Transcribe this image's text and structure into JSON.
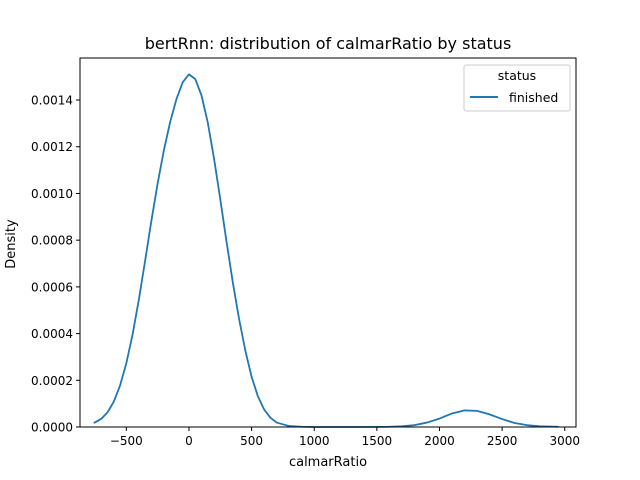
{
  "chart_data": {
    "type": "line",
    "title": "bertRnn: distribution of calmarRatio by status",
    "xlabel": "calmarRatio",
    "ylabel": "Density",
    "xlim": [
      -870,
      3090
    ],
    "ylim": [
      0,
      0.00158
    ],
    "x_ticks": [
      -500,
      0,
      500,
      1000,
      1500,
      2000,
      2500,
      3000
    ],
    "x_tick_labels": [
      "−500",
      "0",
      "500",
      "1000",
      "1500",
      "2000",
      "2500",
      "3000"
    ],
    "y_ticks": [
      0,
      0.0002,
      0.0004,
      0.0006,
      0.0008,
      0.001,
      0.0012,
      0.0014
    ],
    "y_tick_labels": [
      "0.0000",
      "0.0002",
      "0.0004",
      "0.0006",
      "0.0008",
      "0.0010",
      "0.0012",
      "0.0014"
    ],
    "grid": false,
    "legend": {
      "title": "status",
      "position": "top-right",
      "entries": [
        "finished"
      ]
    },
    "series": [
      {
        "name": "finished",
        "color": "#1f77b4",
        "x": [
          -760,
          -700,
          -650,
          -600,
          -550,
          -500,
          -450,
          -400,
          -350,
          -300,
          -250,
          -200,
          -150,
          -100,
          -50,
          0,
          50,
          100,
          150,
          200,
          250,
          300,
          350,
          400,
          450,
          500,
          550,
          600,
          650,
          700,
          800,
          900,
          1000,
          1200,
          1400,
          1600,
          1700,
          1800,
          1900,
          2000,
          2100,
          2200,
          2300,
          2400,
          2500,
          2600,
          2700,
          2800,
          2950
        ],
        "y": [
          1.7e-05,
          3.5e-05,
          6.3e-05,
          0.000109,
          0.000178,
          0.000273,
          0.000397,
          0.000546,
          0.000712,
          0.000883,
          0.001043,
          0.001186,
          0.001306,
          0.001404,
          0.001476,
          0.00151,
          0.00149,
          0.00142,
          0.001304,
          0.00115,
          0.000975,
          0.000793,
          0.000619,
          0.000463,
          0.000327,
          0.000215,
          0.000132,
          7.5e-05,
          4e-05,
          1.9e-05,
          4e-06,
          1e-06,
          0,
          0,
          0,
          1e-06,
          3e-06,
          8e-06,
          1.9e-05,
          3.6e-05,
          5.8e-05,
          7.1e-05,
          6.9e-05,
          5.4e-05,
          3.4e-05,
          1.7e-05,
          8e-06,
          3e-06,
          1e-06
        ]
      }
    ]
  }
}
